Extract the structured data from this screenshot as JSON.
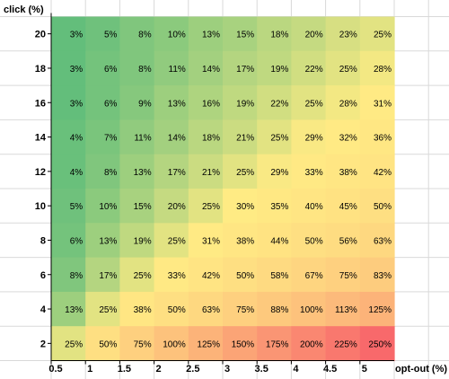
{
  "chart_data": {
    "type": "heatmap",
    "title": "",
    "ylabel": "click (%)",
    "xlabel": "opt-out (%)",
    "x_ticks": [
      "0.5",
      "1",
      "1.5",
      "2",
      "2.5",
      "3",
      "3.5",
      "4",
      "4.5",
      "5"
    ],
    "y_ticks_top_to_bottom": [
      "20",
      "18",
      "16",
      "14",
      "12",
      "10",
      "8",
      "6",
      "4",
      "2"
    ],
    "value_unit": "%",
    "rows_top_to_bottom": [
      {
        "click": 20,
        "values": [
          3,
          5,
          8,
          10,
          13,
          15,
          18,
          20,
          23,
          25
        ]
      },
      {
        "click": 18,
        "values": [
          3,
          6,
          8,
          11,
          14,
          17,
          19,
          22,
          25,
          28
        ]
      },
      {
        "click": 16,
        "values": [
          3,
          6,
          9,
          13,
          16,
          19,
          22,
          25,
          28,
          31
        ]
      },
      {
        "click": 14,
        "values": [
          4,
          7,
          11,
          14,
          18,
          21,
          25,
          29,
          32,
          36
        ]
      },
      {
        "click": 12,
        "values": [
          4,
          8,
          13,
          17,
          21,
          25,
          29,
          33,
          38,
          42
        ]
      },
      {
        "click": 10,
        "values": [
          5,
          10,
          15,
          20,
          25,
          30,
          35,
          40,
          45,
          50
        ]
      },
      {
        "click": 8,
        "values": [
          6,
          13,
          19,
          25,
          31,
          38,
          44,
          50,
          56,
          63
        ]
      },
      {
        "click": 6,
        "values": [
          8,
          17,
          25,
          33,
          42,
          50,
          58,
          67,
          75,
          83
        ]
      },
      {
        "click": 4,
        "values": [
          13,
          25,
          38,
          50,
          63,
          75,
          88,
          100,
          113,
          125
        ]
      },
      {
        "click": 2,
        "values": [
          25,
          50,
          75,
          100,
          125,
          150,
          175,
          200,
          225,
          250
        ]
      }
    ],
    "color_scale": {
      "low": "#63be7b",
      "mid": "#ffeb84",
      "high": "#f8696b",
      "mid_value": 30,
      "high_value": 250
    },
    "gridline_color": "#d9d9d9"
  }
}
